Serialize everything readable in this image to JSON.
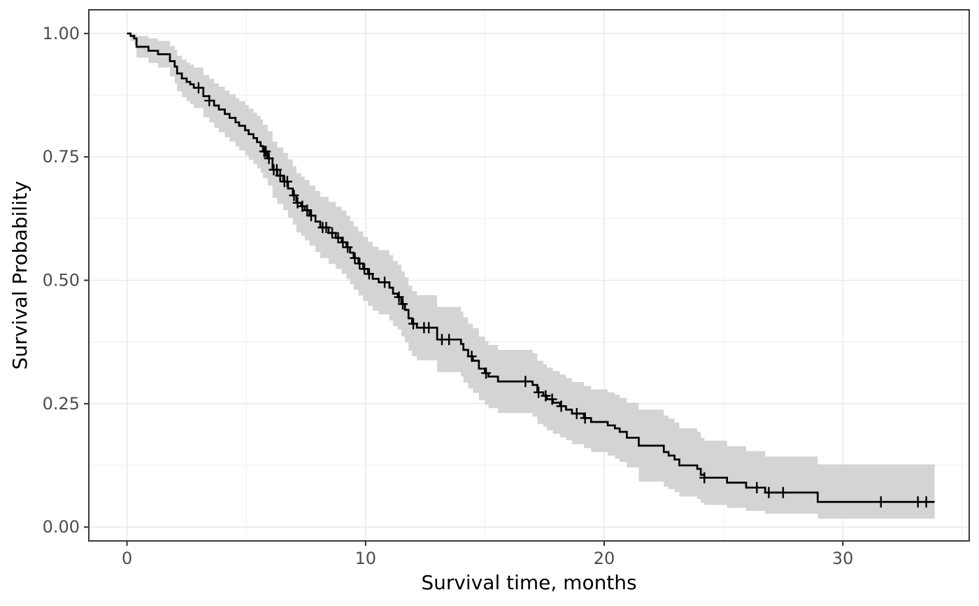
{
  "figure": {
    "background": "#ffffff",
    "panel_border_color": "#3a3a3a",
    "grid_major_color": "#e7e7e7",
    "grid_minor_color": "#f1f1f1",
    "tick_color": "#333333",
    "tick_label_color": "#4d4d4d",
    "curve_color": "#000000",
    "ribbon_color": "#d4d4d4"
  },
  "chart_data": {
    "type": "line",
    "subtype": "kaplan-meier-step-with-confidence-band-and-censor-marks",
    "title": "",
    "xlabel": "Survival time, months",
    "ylabel": "Survival Probability",
    "xlim": [
      -1.6,
      35.3
    ],
    "ylim": [
      -0.028,
      1.048
    ],
    "x_ticks": [
      0,
      10,
      20,
      30
    ],
    "x_tick_labels": [
      "0",
      "10",
      "20",
      "30"
    ],
    "x_minor_ticks": [
      5,
      15,
      25,
      35
    ],
    "y_ticks": [
      0.0,
      0.25,
      0.5,
      0.75,
      1.0
    ],
    "y_tick_labels": [
      "0.00",
      "0.25",
      "0.50",
      "0.75",
      "1.00"
    ],
    "y_minor_ticks": [
      0.125,
      0.375,
      0.625,
      0.875
    ],
    "grid": true,
    "legend": "none",
    "series": [
      {
        "name": "Kaplan-Meier survival estimate",
        "line_color": "#000000",
        "ci_color": "#d4d4d4",
        "steps_format": [
          "time_months",
          "survival",
          "ci_lower",
          "ci_upper"
        ],
        "steps": [
          [
            0.0,
            1.0,
            1.0,
            1.0
          ],
          [
            0.15,
            0.995,
            0.985,
            1.0
          ],
          [
            0.3,
            0.99,
            0.977,
            1.0
          ],
          [
            0.4,
            0.973,
            0.951,
            0.995
          ],
          [
            0.9,
            0.965,
            0.94,
            0.99
          ],
          [
            1.3,
            0.958,
            0.931,
            0.985
          ],
          [
            1.8,
            0.944,
            0.913,
            0.975
          ],
          [
            2.0,
            0.933,
            0.899,
            0.967
          ],
          [
            2.1,
            0.919,
            0.883,
            0.955
          ],
          [
            2.3,
            0.909,
            0.871,
            0.947
          ],
          [
            2.5,
            0.902,
            0.863,
            0.941
          ],
          [
            2.65,
            0.897,
            0.857,
            0.937
          ],
          [
            2.8,
            0.89,
            0.849,
            0.931
          ],
          [
            3.2,
            0.873,
            0.83,
            0.916
          ],
          [
            3.45,
            0.864,
            0.82,
            0.908
          ],
          [
            3.65,
            0.854,
            0.809,
            0.899
          ],
          [
            3.85,
            0.846,
            0.8,
            0.892
          ],
          [
            4.1,
            0.837,
            0.79,
            0.884
          ],
          [
            4.3,
            0.829,
            0.781,
            0.877
          ],
          [
            4.55,
            0.82,
            0.771,
            0.869
          ],
          [
            4.7,
            0.813,
            0.763,
            0.863
          ],
          [
            4.95,
            0.804,
            0.753,
            0.855
          ],
          [
            5.1,
            0.796,
            0.744,
            0.848
          ],
          [
            5.3,
            0.788,
            0.736,
            0.84
          ],
          [
            5.45,
            0.78,
            0.727,
            0.833
          ],
          [
            5.6,
            0.772,
            0.718,
            0.826
          ],
          [
            5.7,
            0.761,
            0.707,
            0.815
          ],
          [
            5.9,
            0.747,
            0.692,
            0.802
          ],
          [
            6.1,
            0.724,
            0.667,
            0.781
          ],
          [
            6.3,
            0.712,
            0.655,
            0.769
          ],
          [
            6.55,
            0.7,
            0.642,
            0.758
          ],
          [
            6.75,
            0.686,
            0.627,
            0.745
          ],
          [
            6.95,
            0.672,
            0.613,
            0.731
          ],
          [
            7.1,
            0.657,
            0.597,
            0.717
          ],
          [
            7.3,
            0.65,
            0.59,
            0.71
          ],
          [
            7.45,
            0.642,
            0.581,
            0.703
          ],
          [
            7.65,
            0.631,
            0.57,
            0.692
          ],
          [
            7.9,
            0.619,
            0.557,
            0.681
          ],
          [
            8.1,
            0.607,
            0.545,
            0.669
          ],
          [
            8.45,
            0.596,
            0.533,
            0.659
          ],
          [
            8.75,
            0.586,
            0.523,
            0.649
          ],
          [
            9.0,
            0.577,
            0.513,
            0.641
          ],
          [
            9.2,
            0.567,
            0.503,
            0.631
          ],
          [
            9.35,
            0.556,
            0.492,
            0.62
          ],
          [
            9.5,
            0.545,
            0.481,
            0.609
          ],
          [
            9.7,
            0.534,
            0.469,
            0.599
          ],
          [
            9.9,
            0.523,
            0.458,
            0.588
          ],
          [
            10.1,
            0.513,
            0.448,
            0.578
          ],
          [
            10.3,
            0.503,
            0.438,
            0.568
          ],
          [
            10.55,
            0.496,
            0.431,
            0.561
          ],
          [
            11.0,
            0.485,
            0.419,
            0.551
          ],
          [
            11.15,
            0.473,
            0.407,
            0.539
          ],
          [
            11.35,
            0.466,
            0.4,
            0.532
          ],
          [
            11.5,
            0.452,
            0.386,
            0.518
          ],
          [
            11.65,
            0.44,
            0.374,
            0.506
          ],
          [
            11.8,
            0.423,
            0.357,
            0.489
          ],
          [
            11.95,
            0.412,
            0.346,
            0.478
          ],
          [
            12.15,
            0.404,
            0.338,
            0.47
          ],
          [
            13.0,
            0.38,
            0.314,
            0.446
          ],
          [
            14.0,
            0.371,
            0.305,
            0.437
          ],
          [
            14.1,
            0.359,
            0.293,
            0.425
          ],
          [
            14.3,
            0.346,
            0.281,
            0.412
          ],
          [
            14.5,
            0.337,
            0.272,
            0.403
          ],
          [
            14.75,
            0.321,
            0.257,
            0.386
          ],
          [
            15.0,
            0.312,
            0.248,
            0.377
          ],
          [
            15.15,
            0.305,
            0.241,
            0.369
          ],
          [
            15.55,
            0.295,
            0.231,
            0.359
          ],
          [
            17.0,
            0.288,
            0.224,
            0.352
          ],
          [
            17.2,
            0.273,
            0.209,
            0.337
          ],
          [
            17.45,
            0.266,
            0.203,
            0.33
          ],
          [
            17.6,
            0.259,
            0.196,
            0.323
          ],
          [
            17.85,
            0.252,
            0.189,
            0.316
          ],
          [
            18.15,
            0.245,
            0.182,
            0.309
          ],
          [
            18.4,
            0.238,
            0.176,
            0.302
          ],
          [
            18.65,
            0.23,
            0.168,
            0.294
          ],
          [
            19.15,
            0.221,
            0.16,
            0.286
          ],
          [
            19.45,
            0.213,
            0.152,
            0.279
          ],
          [
            20.15,
            0.206,
            0.145,
            0.273
          ],
          [
            20.45,
            0.2,
            0.139,
            0.268
          ],
          [
            20.65,
            0.193,
            0.132,
            0.262
          ],
          [
            20.95,
            0.181,
            0.121,
            0.252
          ],
          [
            21.45,
            0.165,
            0.092,
            0.238
          ],
          [
            22.5,
            0.152,
            0.082,
            0.226
          ],
          [
            22.7,
            0.145,
            0.077,
            0.22
          ],
          [
            22.95,
            0.137,
            0.071,
            0.212
          ],
          [
            23.15,
            0.125,
            0.062,
            0.2
          ],
          [
            23.9,
            0.118,
            0.057,
            0.193
          ],
          [
            24.05,
            0.106,
            0.049,
            0.181
          ],
          [
            24.2,
            0.1,
            0.045,
            0.175
          ],
          [
            25.15,
            0.09,
            0.039,
            0.164
          ],
          [
            25.95,
            0.08,
            0.033,
            0.154
          ],
          [
            26.75,
            0.07,
            0.027,
            0.143
          ],
          [
            28.95,
            0.051,
            0.017,
            0.127
          ],
          [
            33.85,
            0.051,
            0.017,
            0.127
          ]
        ],
        "censored_format": [
          "time_months",
          "survival"
        ],
        "censored": [
          [
            3.0,
            0.89
          ],
          [
            3.45,
            0.864
          ],
          [
            5.75,
            0.761
          ],
          [
            5.82,
            0.761
          ],
          [
            5.95,
            0.747
          ],
          [
            6.15,
            0.724
          ],
          [
            6.28,
            0.724
          ],
          [
            6.42,
            0.712
          ],
          [
            6.6,
            0.7
          ],
          [
            6.72,
            0.7
          ],
          [
            7.0,
            0.672
          ],
          [
            7.15,
            0.657
          ],
          [
            7.35,
            0.65
          ],
          [
            7.55,
            0.642
          ],
          [
            7.72,
            0.631
          ],
          [
            8.2,
            0.607
          ],
          [
            8.35,
            0.607
          ],
          [
            8.6,
            0.596
          ],
          [
            8.85,
            0.586
          ],
          [
            9.05,
            0.577
          ],
          [
            9.25,
            0.567
          ],
          [
            9.55,
            0.545
          ],
          [
            9.75,
            0.534
          ],
          [
            9.95,
            0.523
          ],
          [
            10.15,
            0.513
          ],
          [
            10.8,
            0.496
          ],
          [
            11.4,
            0.466
          ],
          [
            11.56,
            0.452
          ],
          [
            12.0,
            0.412
          ],
          [
            12.45,
            0.404
          ],
          [
            12.65,
            0.404
          ],
          [
            13.2,
            0.38
          ],
          [
            13.5,
            0.38
          ],
          [
            14.45,
            0.346
          ],
          [
            15.05,
            0.312
          ],
          [
            16.7,
            0.295
          ],
          [
            17.25,
            0.273
          ],
          [
            17.55,
            0.266
          ],
          [
            17.82,
            0.259
          ],
          [
            18.2,
            0.245
          ],
          [
            18.85,
            0.23
          ],
          [
            19.2,
            0.221
          ],
          [
            24.2,
            0.1
          ],
          [
            26.4,
            0.08
          ],
          [
            26.9,
            0.07
          ],
          [
            27.5,
            0.07
          ],
          [
            31.6,
            0.051
          ],
          [
            33.15,
            0.051
          ],
          [
            33.5,
            0.051
          ]
        ]
      }
    ]
  }
}
